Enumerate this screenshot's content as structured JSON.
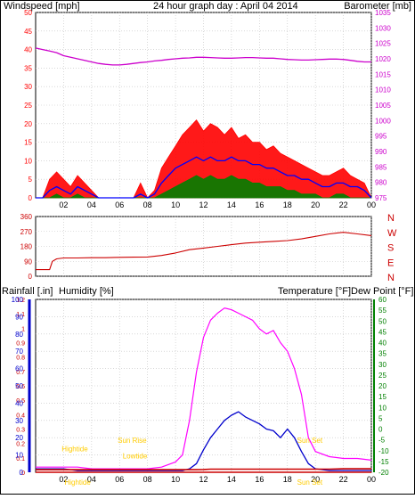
{
  "colors": {
    "wind": "#ff0000",
    "wind_avg": "#0000ff",
    "wind_low": "#008000",
    "barometer": "#cc00cc",
    "direction": "#cc0000",
    "humidity": "#0000cc",
    "temperature": "#008000",
    "dewpoint": "#ff00ff",
    "rain": "#cc0000",
    "tide": "#ffcc00",
    "grid": "#c0c0c0"
  },
  "chart_data": [
    {
      "type": "line",
      "title": "24 hour graph day : April 04 2014",
      "ylabel": "Windspeed [mph]",
      "y2label": "Barometer [mb]",
      "ylim": [
        0,
        50
      ],
      "y2lim": [
        975,
        1035
      ],
      "y_ticks": [
        0,
        5,
        10,
        15,
        20,
        25,
        30,
        35,
        40,
        45,
        50
      ],
      "y2_ticks": [
        975,
        980,
        985,
        990,
        995,
        1000,
        1005,
        1010,
        1015,
        1020,
        1025,
        1030,
        1035
      ],
      "x_ticks": [
        "02",
        "04",
        "06",
        "08",
        "10",
        "12",
        "14",
        "16",
        "18",
        "20",
        "22",
        "00"
      ],
      "grid": true,
      "x": [
        0,
        0.5,
        1,
        1.5,
        2,
        2.5,
        3,
        3.5,
        4,
        4.5,
        5,
        5.5,
        6,
        6.5,
        7,
        7.5,
        8,
        8.5,
        9,
        9.5,
        10,
        10.5,
        11,
        11.5,
        12,
        12.5,
        13,
        13.5,
        14,
        14.5,
        15,
        15.5,
        16,
        16.5,
        17,
        17.5,
        18,
        18.5,
        19,
        19.5,
        20,
        20.5,
        21,
        21.5,
        22,
        22.5,
        23,
        23.5,
        24
      ],
      "series": [
        {
          "values": [
            0,
            0,
            5,
            7,
            5,
            3,
            6,
            4,
            2,
            0,
            0,
            0,
            0,
            0,
            0,
            4,
            0,
            2,
            8,
            11,
            14,
            17,
            19,
            21,
            18,
            20,
            19,
            17,
            19,
            16,
            17,
            15,
            15,
            13,
            14,
            12,
            11,
            10,
            9,
            8,
            7,
            6,
            6,
            7,
            8,
            6,
            5,
            4,
            0
          ]
        },
        {
          "values": [
            0,
            0,
            2,
            3,
            2,
            1,
            3,
            2,
            1,
            0,
            0,
            0,
            0,
            0,
            0,
            1,
            0,
            1,
            4,
            6,
            8,
            9,
            10,
            11,
            10,
            11,
            10,
            10,
            11,
            10,
            10,
            9,
            9,
            8,
            8,
            7,
            6,
            6,
            5,
            5,
            4,
            3,
            3,
            4,
            4,
            3,
            3,
            2,
            0
          ]
        },
        {
          "values": [
            0,
            0,
            0,
            1,
            0,
            0,
            1,
            0,
            0,
            0,
            0,
            0,
            0,
            0,
            0,
            0,
            0,
            0,
            1,
            2,
            3,
            4,
            5,
            6,
            5,
            6,
            5,
            5,
            6,
            5,
            5,
            4,
            4,
            3,
            3,
            3,
            2,
            2,
            1,
            1,
            1,
            0,
            0,
            1,
            1,
            0,
            0,
            0,
            0
          ]
        },
        {
          "axis": "right",
          "values": [
            1023.5,
            1023,
            1022.5,
            1022,
            1021,
            1020.5,
            1020,
            1019.5,
            1019,
            1018.5,
            1018.2,
            1018,
            1018,
            1018.2,
            1018.5,
            1018.8,
            1019,
            1019.3,
            1019.5,
            1019.8,
            1020,
            1020.2,
            1020.3,
            1020.5,
            1020.5,
            1020.4,
            1020.3,
            1020.2,
            1020.2,
            1020.3,
            1020.4,
            1020.4,
            1020.3,
            1020.2,
            1020.2,
            1020,
            1019.8,
            1019.7,
            1019.6,
            1019.6,
            1019.7,
            1019.8,
            1019.9,
            1019.9,
            1019.8,
            1019.5,
            1019.2,
            1019,
            1019
          ]
        }
      ]
    },
    {
      "type": "line",
      "ylim": [
        0,
        360
      ],
      "y_ticks": [
        0,
        90,
        180,
        270,
        360
      ],
      "y2_labels": [
        "N",
        "W",
        "S",
        "E",
        "N"
      ],
      "x_ticks": [
        "02",
        "04",
        "06",
        "08",
        "10",
        "12",
        "14",
        "16",
        "18",
        "20",
        "22",
        "00"
      ],
      "grid": true,
      "x": [
        0,
        1,
        1.2,
        1.5,
        2,
        3,
        4,
        5,
        6,
        7,
        8,
        9,
        10,
        11,
        12,
        13,
        14,
        15,
        16,
        17,
        18,
        19,
        20,
        21,
        22,
        23,
        24
      ],
      "series": [
        {
          "values": [
            40,
            40,
            90,
            105,
            110,
            110,
            112,
            112,
            114,
            115,
            116,
            125,
            140,
            160,
            170,
            180,
            190,
            200,
            205,
            210,
            215,
            225,
            240,
            255,
            265,
            255,
            245
          ]
        }
      ]
    },
    {
      "type": "line",
      "ylabel": "Humidity [%]",
      "y0label": "Rainfall [.in]",
      "y2label": "Temperature [°F]",
      "y3label": "Dew Point [°F]",
      "ylim": [
        0,
        100
      ],
      "y_ticks": [
        0,
        10,
        20,
        30,
        40,
        50,
        60,
        70,
        80,
        90,
        100
      ],
      "y_ticks_rain": [
        0,
        0.1,
        0.2,
        0.3,
        0.4,
        0.5,
        0.6,
        0.7,
        0.8,
        0.9,
        1,
        1.1,
        1.2
      ],
      "y2lim": [
        -20,
        60
      ],
      "y2_ticks": [
        -20,
        -15,
        -10,
        -5,
        0,
        5,
        10,
        15,
        20,
        25,
        30,
        35,
        40,
        45,
        50,
        55,
        60
      ],
      "x_ticks": [
        "02",
        "04",
        "06",
        "08",
        "10",
        "12",
        "14",
        "16",
        "18",
        "20",
        "22",
        "00"
      ],
      "grid": true,
      "x": [
        0,
        1,
        2,
        3,
        4,
        5,
        6,
        7,
        8,
        9,
        10,
        10.5,
        11,
        11.5,
        12,
        12.5,
        13,
        13.5,
        14,
        14.5,
        15,
        15.5,
        16,
        16.5,
        17,
        17.5,
        18,
        18.5,
        19,
        19.5,
        20,
        21,
        22,
        23,
        24
      ],
      "series": [
        {
          "values": [
            2,
            2,
            2,
            1,
            1,
            1,
            1,
            1,
            1,
            1,
            1,
            1,
            2,
            5,
            13,
            20,
            25,
            30,
            33,
            35,
            32,
            30,
            28,
            25,
            24,
            20,
            25,
            20,
            12,
            5,
            2,
            1,
            1,
            1,
            1
          ]
        },
        {
          "values": [
            0,
            0,
            0,
            0,
            0,
            0,
            0,
            0,
            0,
            0,
            0,
            0,
            0,
            0,
            0,
            0,
            0,
            0,
            0,
            0,
            0,
            0,
            0,
            0,
            0,
            0,
            0,
            0,
            0,
            0,
            0,
            0,
            0,
            0,
            0
          ]
        },
        {
          "values": [
            3,
            3,
            3,
            3,
            2,
            2,
            2,
            2,
            2,
            3,
            6,
            10,
            30,
            58,
            78,
            88,
            92,
            95,
            94,
            92,
            90,
            88,
            83,
            80,
            82,
            75,
            70,
            60,
            45,
            20,
            12,
            9,
            8,
            8,
            7
          ]
        },
        {
          "values": [
            1.5,
            1.5,
            1.5,
            1.5,
            1.5,
            1.5,
            1.5,
            1.5,
            1.5,
            1.5,
            1.5,
            1.5,
            1.5,
            1.5,
            1.6,
            1.8,
            1.8,
            1.8,
            1.8,
            1.8,
            1.8,
            1.8,
            1.8,
            1.8,
            1.8,
            1.8,
            1.8,
            1.8,
            1.8,
            1.8,
            1.8,
            1.8,
            2,
            2,
            2
          ]
        }
      ],
      "annotations": [
        {
          "label": "Hightide",
          "x": 2.8,
          "y": 12
        },
        {
          "label": "Sun Rise",
          "x": 6.9,
          "y": 17
        },
        {
          "label": "Lowtide",
          "x": 7.1,
          "y": 8
        },
        {
          "label": "Sun Set",
          "x": 19.6,
          "y": 17
        },
        {
          "label": "Hightide",
          "x": 3,
          "y": -8
        },
        {
          "label": "Sun Set",
          "x": 19.6,
          "y": -8
        }
      ]
    }
  ]
}
